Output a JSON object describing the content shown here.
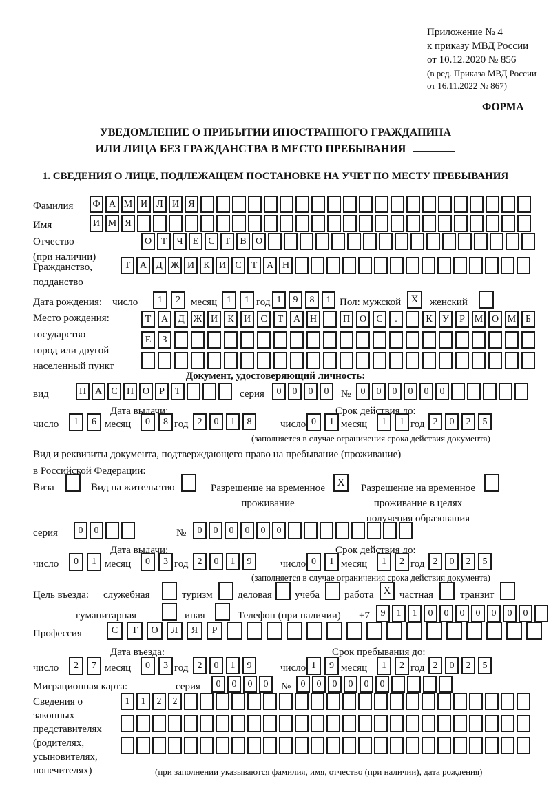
{
  "header": {
    "appendix_lines": [
      "Приложение № 4",
      "к приказу МВД России",
      "от 10.12.2020 № 856"
    ],
    "revision_lines": [
      "(в ред. Приказа МВД России",
      "от 16.11.2022 № 867)"
    ],
    "form_label": "ФОРМА"
  },
  "title": {
    "line1": "УВЕДОМЛЕНИЕ О ПРИБЫТИИ ИНОСТРАННОГО ГРАЖДАНИНА",
    "line2": "ИЛИ ЛИЦА БЕЗ ГРАЖДАНСТВА В МЕСТО ПРЕБЫВАНИЯ"
  },
  "section1_heading": "1. СВЕДЕНИЯ О ЛИЦЕ, ПОДЛЕЖАЩЕМ ПОСТАНОВКЕ НА УЧЕТ ПО МЕСТУ ПРЕБЫВАНИЯ",
  "labels": {
    "day": "число",
    "month": "месяц",
    "year": "год",
    "series": "серия",
    "number": "№",
    "issue_date": "Дата выдачи:",
    "valid_until": "Срок действия до:",
    "validity_note": "(заполняется в случае ограничения срока действия документа)"
  },
  "surname": {
    "label": "Фамилия",
    "boxes": {
      "n": 28,
      "v": "ФАМИЛИЯ"
    }
  },
  "firstname": {
    "label": "Имя",
    "boxes": {
      "n": 28,
      "v": "ИМЯ"
    }
  },
  "patronymic": {
    "label": "Отчество",
    "label2": "(при наличии)",
    "boxes": {
      "n": 25,
      "v": "ОТЧЕСТВО"
    }
  },
  "citizenship": {
    "label": "Гражданство,",
    "label2": "подданство",
    "boxes": {
      "n": 26,
      "v": "ТАДЖИКИСТАН"
    }
  },
  "birth": {
    "label": "Дата рождения:",
    "day": {
      "n": 2,
      "v": "12"
    },
    "month": {
      "n": 2,
      "v": "11"
    },
    "year": {
      "n": 4,
      "v": "1981"
    }
  },
  "sex": {
    "label": "Пол: мужской",
    "male_box": {
      "n": 1,
      "v": "X"
    },
    "female_label": "женский",
    "female_box": {
      "n": 1,
      "v": ""
    }
  },
  "birthplace": {
    "label": "Место рождения:",
    "sub1": "государство",
    "sub2": "город или другой",
    "sub3": "населенный пункт",
    "row1": {
      "n": 24,
      "v": "ТАДЖИКИСТАН ПОС. КУРМОМБ"
    },
    "row2": {
      "n": 24,
      "v": "ЕЗ"
    },
    "row3": {
      "n": 24,
      "v": ""
    }
  },
  "iddoc": {
    "heading": "Документ, удостоверяющий личность:",
    "kind_label": "вид",
    "kind": {
      "n": 10,
      "v": "ПАСПОРТ"
    },
    "series": {
      "n": 4,
      "v": "0000"
    },
    "number": {
      "n": 11,
      "v": "000000"
    },
    "issue": {
      "day": {
        "n": 2,
        "v": "16"
      },
      "month": {
        "n": 2,
        "v": "08"
      },
      "year": {
        "n": 4,
        "v": "2018"
      }
    },
    "expiry": {
      "day": {
        "n": 2,
        "v": "01"
      },
      "month": {
        "n": 2,
        "v": "11"
      },
      "year": {
        "n": 4,
        "v": "2025"
      }
    }
  },
  "stay_doc": {
    "intro1": "Вид и реквизиты документа, подтверждающего право на пребывание (проживание)",
    "intro2": "в Российской Федерации:",
    "options": [
      {
        "label": "Виза",
        "box": {
          "n": 1,
          "v": ""
        }
      },
      {
        "label": "Вид на жительство",
        "box": {
          "n": 1,
          "v": ""
        }
      },
      {
        "label": "Разрешение на временное",
        "label2": "проживание",
        "box": {
          "n": 1,
          "v": "X"
        }
      },
      {
        "label": "Разрешение на временное",
        "label2": "проживание в целях",
        "label3": "получения образования",
        "box": {
          "n": 1,
          "v": ""
        }
      }
    ],
    "series": {
      "n": 4,
      "v": "00"
    },
    "number": {
      "n": 14,
      "v": "000000"
    },
    "issue": {
      "day": {
        "n": 2,
        "v": "01"
      },
      "month": {
        "n": 2,
        "v": "03"
      },
      "year": {
        "n": 4,
        "v": "2019"
      }
    },
    "expiry": {
      "day": {
        "n": 2,
        "v": "01"
      },
      "month": {
        "n": 2,
        "v": "12"
      },
      "year": {
        "n": 4,
        "v": "2025"
      }
    }
  },
  "purpose": {
    "label": "Цель въезда:",
    "options": [
      {
        "label": "служебная",
        "box": {
          "n": 1,
          "v": ""
        }
      },
      {
        "label": "туризм",
        "box": {
          "n": 1,
          "v": ""
        }
      },
      {
        "label": "деловая",
        "box": {
          "n": 1,
          "v": ""
        }
      },
      {
        "label": "учеба",
        "box": {
          "n": 1,
          "v": ""
        }
      },
      {
        "label": "работа",
        "box": {
          "n": 1,
          "v": "X"
        }
      },
      {
        "label": "частная",
        "box": {
          "n": 1,
          "v": ""
        }
      },
      {
        "label": "транзит",
        "box": {
          "n": 1,
          "v": ""
        }
      },
      {
        "label": "гуманитарная",
        "box": {
          "n": 1,
          "v": ""
        }
      },
      {
        "label": "иная",
        "box": {
          "n": 1,
          "v": ""
        }
      }
    ]
  },
  "phone": {
    "label": "Телефон (при наличии)",
    "prefix": "+7",
    "boxes": {
      "n": 11,
      "v": "9110000000"
    }
  },
  "profession": {
    "label": "Профессия",
    "boxes": {
      "n": 22,
      "v": "СТОЛЯР"
    }
  },
  "entry": {
    "date_heading": "Дата въезда:",
    "day": {
      "n": 2,
      "v": "27"
    },
    "month": {
      "n": 2,
      "v": "03"
    },
    "year": {
      "n": 4,
      "v": "2019"
    },
    "stay_heading": "Срок пребывания до:",
    "stay_day": {
      "n": 2,
      "v": "19"
    },
    "stay_month": {
      "n": 2,
      "v": "12"
    },
    "stay_year": {
      "n": 4,
      "v": "2025"
    }
  },
  "migration_card": {
    "label": "Миграционная карта:",
    "series": {
      "n": 4,
      "v": "0000"
    },
    "number": {
      "n": 10,
      "v": "000000"
    }
  },
  "representatives": {
    "label_lines": [
      "Сведения о",
      "законных",
      "представителях",
      "(родителях,",
      "усыновителях,",
      "попечителях)"
    ],
    "row1": {
      "n": 26,
      "v": "1122"
    },
    "row2": {
      "n": 26,
      "v": ""
    },
    "row3": {
      "n": 26,
      "v": ""
    },
    "note": "(при заполнении указываются фамилия, имя, отчество (при наличии), дата рождения)"
  }
}
